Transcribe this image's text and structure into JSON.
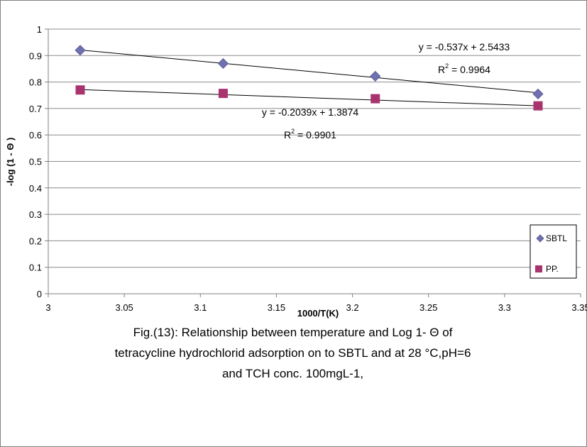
{
  "chart_data": {
    "type": "scatter",
    "xlabel": "1000/T(K)",
    "ylabel": "-log (1 - Θ )",
    "xlim": [
      3,
      3.35
    ],
    "ylim": [
      0,
      1
    ],
    "x_ticks": [
      "3",
      "3.05",
      "3.1",
      "3.15",
      "3.2",
      "3.25",
      "3.3",
      "3.35"
    ],
    "y_ticks": [
      "0",
      "0.1",
      "0.2",
      "0.3",
      "0.4",
      "0.5",
      "0.6",
      "0.7",
      "0.8",
      "0.9",
      "1"
    ],
    "grid": "horizontal",
    "legend_position": "right",
    "series": [
      {
        "name": "SBTL",
        "marker": "diamond",
        "color": "#6f70b0",
        "x": [
          3.021,
          3.115,
          3.215,
          3.322
        ],
        "y": [
          0.92,
          0.87,
          0.822,
          0.755
        ],
        "trendline": {
          "slope": -0.537,
          "intercept": 2.5433,
          "equation": "y = -0.537x + 2.5433",
          "r2_label": "R",
          "r2_value": " = 0.9964"
        }
      },
      {
        "name": "PP.",
        "marker": "square",
        "color": "#a8336e",
        "x": [
          3.021,
          3.115,
          3.215,
          3.322
        ],
        "y": [
          0.77,
          0.757,
          0.737,
          0.71
        ],
        "trendline": {
          "slope": -0.2039,
          "intercept": 1.3874,
          "equation": "y = -0.2039x + 1.3874",
          "r2_label": "R",
          "r2_value": " = 0.9901"
        }
      }
    ]
  },
  "caption": {
    "line1": "Fig.(13): Relationship between temperature and Log 1- Θ   of",
    "line2": "tetracycline hydrochlorid adsorption on to SBTL and at 28 °C,pH=6",
    "line3": "and TCH conc. 100mgL-1,"
  }
}
